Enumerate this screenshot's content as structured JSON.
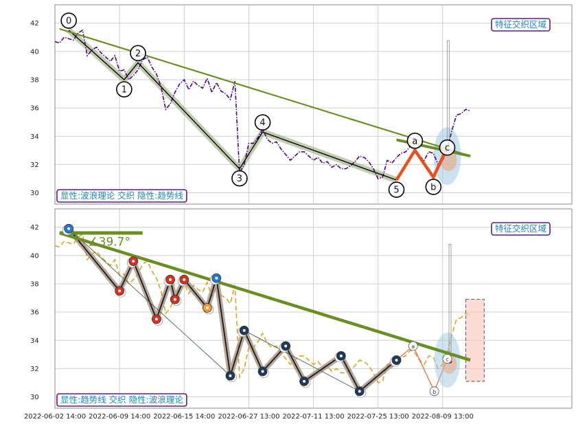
{
  "colors": {
    "trend": "#6b8e23",
    "price_top": "#4b0082",
    "price_bottom": "#daa520",
    "wave_fill": "#8fa36b",
    "wave_edge": "#000000",
    "current_wave": "#e8511f",
    "badge_border": "#5b1a8a",
    "badge_text": "#1a86c6",
    "ellipse": "#9ecae1",
    "marker_red": "#d7301f",
    "marker_orange": "#f09a3a",
    "marker_blue": "#1f78d1",
    "marker_navy": "#1f3a5a"
  },
  "panels": [
    {
      "id": "top",
      "badge_left": "显性:波浪理论 交织 隐性:趋势线",
      "badge_right": "特征交织区域"
    },
    {
      "id": "bottom",
      "badge_left": "显性:趋势线 交织 隐性:波浪理论",
      "badge_right": "特征交织区域",
      "angle_label": "∡39.7°"
    }
  ],
  "chart_data": [
    {
      "type": "line",
      "panel": "top",
      "ylim": [
        29.2,
        43.3
      ],
      "xlim": [
        0,
        56
      ],
      "yticks": [
        30,
        32,
        34,
        36,
        38,
        40,
        42
      ],
      "xtick_labels": [
        "2022-06-02 14:00",
        "2022-06-09 14:00",
        "2022-06-15 14:00",
        "2022-06-27 13:00",
        "2022-07-11 13:00",
        "2022-07-25 13:00",
        "2022-08-09 13:00"
      ],
      "xtick_positions": [
        0,
        7,
        14,
        21,
        28,
        35,
        42
      ],
      "price_series": {
        "x": [
          0,
          0.5,
          1,
          1.5,
          2,
          2.5,
          3,
          3.5,
          4,
          4.5,
          5,
          5.5,
          6,
          6.5,
          7,
          7.5,
          8,
          8.5,
          9,
          9.5,
          10,
          10.5,
          11,
          11.5,
          12,
          12.5,
          13,
          13.5,
          14,
          14.5,
          15,
          15.5,
          16,
          16.5,
          17,
          17.5,
          18,
          18.5,
          19,
          19.5,
          20,
          20.5,
          21,
          21.5,
          22,
          22.5,
          23,
          23.5,
          24,
          24.5,
          25,
          25.5,
          26,
          26.5,
          27,
          27.5,
          28,
          28.5,
          29,
          29.5,
          30,
          30.5,
          31,
          31.5,
          32,
          32.5,
          33,
          33.5,
          34,
          34.5,
          35,
          35.5,
          36,
          36.5,
          37,
          37.5,
          38,
          38.5,
          39,
          39.5,
          40,
          40.5,
          41,
          41.5,
          42,
          42.5,
          43,
          43.5,
          44,
          44.5,
          45
        ],
        "values": [
          40.7,
          40.6,
          41.0,
          40.9,
          40.8,
          41.3,
          41.5,
          39.7,
          40.1,
          40.3,
          39.9,
          39.6,
          39.3,
          39.7,
          38.6,
          38.7,
          38.0,
          38.3,
          38.7,
          39.4,
          39.6,
          38.9,
          38.4,
          37.5,
          35.9,
          36.3,
          37.1,
          37.7,
          38.0,
          37.3,
          37.9,
          37.6,
          37.4,
          38.1,
          37.1,
          37.8,
          37.2,
          37.0,
          36.6,
          37.9,
          31.4,
          32.0,
          33.5,
          33.5,
          33.9,
          34.5,
          33.8,
          33.5,
          33.6,
          33.1,
          32.7,
          32.3,
          32.6,
          32.9,
          32.9,
          32.6,
          32.3,
          32.5,
          32.1,
          32.2,
          31.8,
          32.0,
          31.7,
          31.7,
          31.9,
          32.2,
          32.6,
          32.5,
          32.2,
          31.7,
          31.0,
          31.1,
          32.3,
          32.1,
          32.5,
          32.8,
          32.9,
          33.3,
          33.1,
          32.6,
          32.3,
          32.9,
          32.8,
          32.0,
          32.3,
          33.1,
          34.4,
          35.5,
          35.6,
          35.9,
          35.8
        ]
      },
      "trendline": {
        "x": [
          0.5,
          45
        ],
        "y": [
          41.6,
          32.6
        ]
      },
      "waves": {
        "labels": [
          "0",
          "1",
          "2",
          "3",
          "4",
          "5",
          "a",
          "b",
          "c"
        ],
        "x": [
          1.5,
          7.5,
          9,
          20,
          22.5,
          37,
          39,
          41,
          42.5
        ],
        "y": [
          41.5,
          38.0,
          39.2,
          31.7,
          34.3,
          30.9,
          33.0,
          31.1,
          33.2
        ]
      }
    },
    {
      "type": "line",
      "panel": "bottom",
      "ylim": [
        29.2,
        43.3
      ],
      "xlim": [
        0,
        56
      ],
      "yticks": [
        30,
        32,
        34,
        36,
        38,
        40,
        42
      ],
      "xtick_labels": [
        "2022-06-02 14:00",
        "2022-06-09 14:00",
        "2022-06-15 14:00",
        "2022-06-27 13:00",
        "2022-07-11 13:00",
        "2022-07-25 13:00",
        "2022-08-09 13:00"
      ],
      "xtick_positions": [
        0,
        7,
        14,
        21,
        28,
        35,
        42
      ],
      "trendline": {
        "x": [
          0.5,
          45
        ],
        "y": [
          41.6,
          32.6
        ]
      },
      "angle_line": {
        "x": [
          0.5,
          9.5
        ],
        "y": [
          41.6,
          41.6
        ]
      },
      "swings": {
        "x": [
          1.5,
          7,
          8.5,
          11,
          12.5,
          13,
          14,
          16.5,
          17.5,
          19,
          20.5,
          22.5,
          25,
          27,
          31,
          33,
          37
        ],
        "y": [
          41.9,
          37.5,
          39.6,
          35.5,
          38.3,
          36.9,
          38.3,
          36.3,
          38.4,
          31.5,
          34.7,
          31.8,
          33.6,
          31.1,
          32.9,
          30.4,
          32.6
        ]
      },
      "secondary_markers": {
        "labels": [
          "a",
          "b",
          "c"
        ],
        "x": [
          38.8,
          41.1,
          42.5
        ],
        "y": [
          33.6,
          30.4,
          32.7
        ]
      }
    }
  ]
}
